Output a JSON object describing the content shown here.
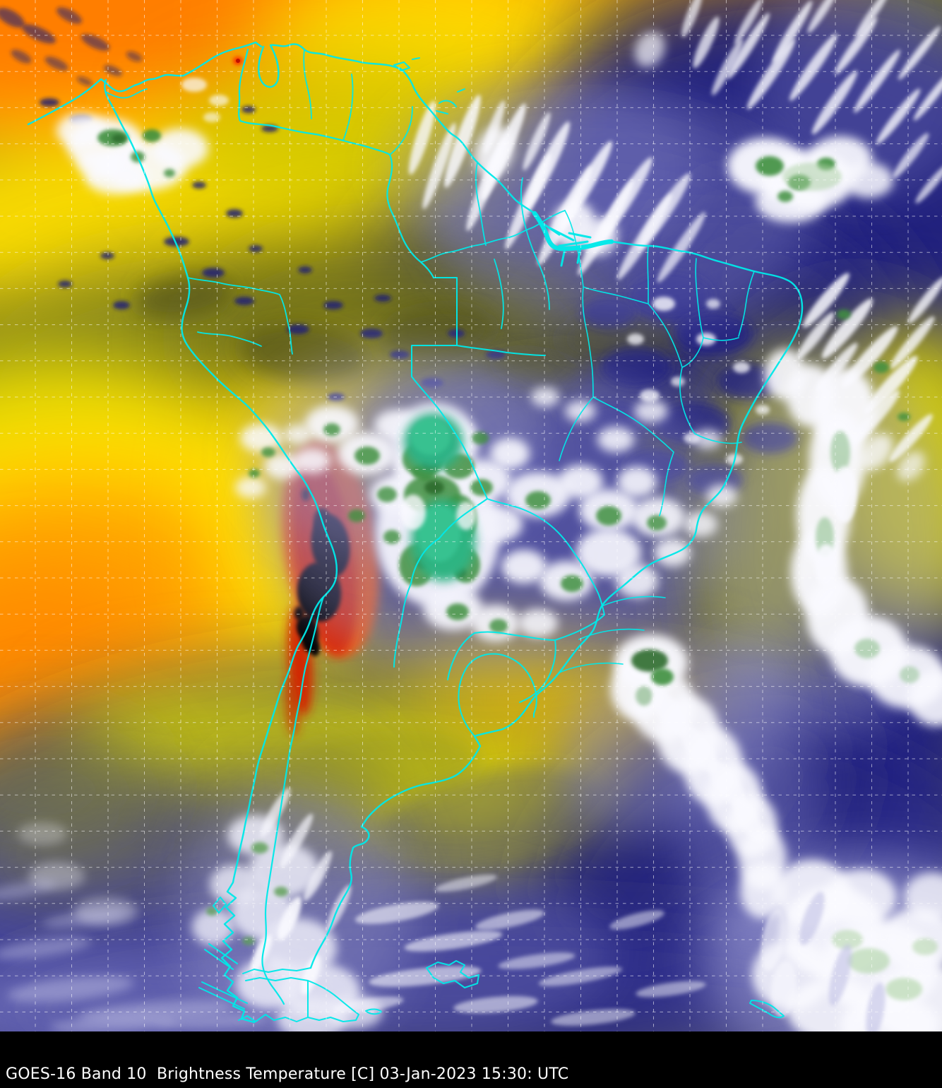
{
  "map": {
    "description": "GOES-16 infrared brightness temperature satellite scene over South America",
    "overlay": {
      "border_color": "#00e8e8",
      "grid_color": "#ffffff",
      "grid_style": "dashed"
    },
    "palette": {
      "warmest_black": "#000000",
      "very_warm_red": "#dd2500",
      "warm_orange": "#ff9300",
      "warm_yellow": "#ffdf00",
      "mild_olive": "#76761c",
      "moist_navy": "#26267f",
      "cold_lavender": "#9191d0",
      "colder_white": "#fafaff",
      "very_cold_green": "#3f8f3f",
      "coldest_teal": "#2db482"
    }
  },
  "caption": {
    "full_text": "GOES-16 Band 10  Brightness Temperature [C] 03-Jan-2023 15:30: UTC",
    "satellite": "GOES-16",
    "band": "Band 10",
    "product": "Brightness Temperature",
    "units_bracket": "[C]",
    "date": "03-Jan-2023",
    "time": "15:30:",
    "timezone": "UTC",
    "text_color": "#ffffff",
    "bar_color": "#000000"
  }
}
